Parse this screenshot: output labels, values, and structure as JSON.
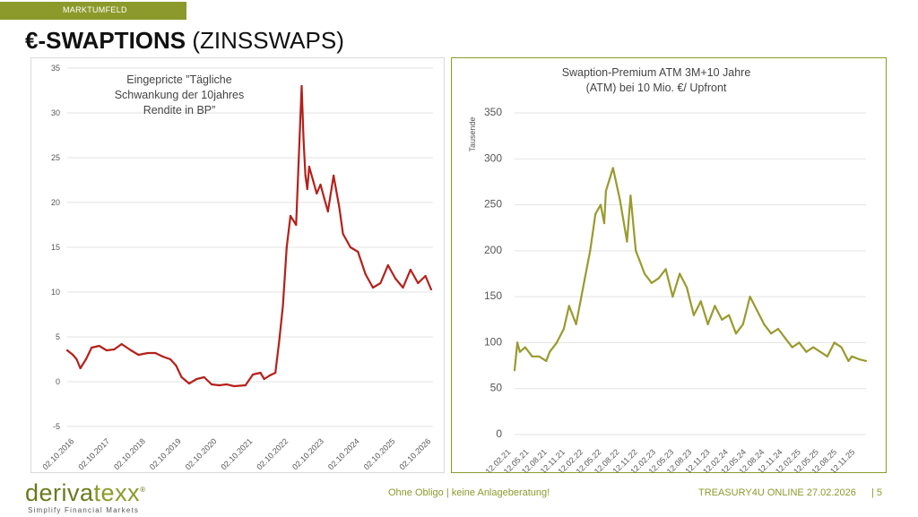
{
  "header": {
    "section_label": "MARKTUMFELD",
    "title_bold": "€-SWAPTIONS",
    "title_rest": "(ZINSSWAPS)"
  },
  "colors": {
    "accent": "#8c9a2b",
    "left_series": "#b5201a",
    "right_series": "#9a9a2f"
  },
  "chart_data": [
    {
      "type": "line",
      "title": "Eingepricte ”Tägliche Schwankung der 10jahres Rendite in BP”",
      "title_lines": [
        "Eingepricte ”Tägliche",
        "Schwankung der 10jahres",
        "Rendite in BP”"
      ],
      "xlabel": "",
      "ylabel": "",
      "ylim": [
        -5,
        35
      ],
      "yticks": [
        "35",
        "30",
        "25",
        "20",
        "15",
        "10",
        "5",
        "0",
        "-5"
      ],
      "xticks": [
        "02.10.2016",
        "02.10.2017",
        "02.10.2018",
        "02.10.2019",
        "02.10.2020",
        "02.10.2021",
        "02.10.2022",
        "02.10.2023",
        "02.10.2024",
        "02.10.2025",
        "02.10.2026"
      ],
      "x": [
        2016.75,
        2016.9,
        2017.0,
        2017.1,
        2017.25,
        2017.4,
        2017.6,
        2017.8,
        2018.0,
        2018.2,
        2018.45,
        2018.65,
        2018.9,
        2019.1,
        2019.3,
        2019.5,
        2019.65,
        2019.8,
        2020.0,
        2020.2,
        2020.4,
        2020.6,
        2020.8,
        2021.0,
        2021.2,
        2021.5,
        2021.7,
        2021.9,
        2022.0,
        2022.15,
        2022.3,
        2022.4,
        2022.5,
        2022.6,
        2022.7,
        2022.85,
        2023.0,
        2023.05,
        2023.1,
        2023.15,
        2023.2,
        2023.3,
        2023.4,
        2023.5,
        2023.6,
        2023.7,
        2023.85,
        2024.0,
        2024.1,
        2024.3,
        2024.5,
        2024.7,
        2024.9,
        2025.1,
        2025.3,
        2025.5,
        2025.7,
        2025.9,
        2026.1,
        2026.3,
        2026.45
      ],
      "values": [
        3.5,
        3.0,
        2.5,
        1.5,
        2.5,
        3.8,
        4.0,
        3.5,
        3.6,
        4.2,
        3.5,
        3.0,
        3.2,
        3.2,
        2.8,
        2.5,
        1.8,
        0.5,
        -0.2,
        0.3,
        0.5,
        -0.3,
        -0.4,
        -0.3,
        -0.5,
        -0.4,
        0.8,
        1.0,
        0.3,
        0.7,
        1.0,
        4.5,
        8.5,
        15.0,
        18.5,
        17.5,
        33.0,
        27.0,
        23.0,
        21.5,
        24.0,
        22.5,
        21.0,
        22.0,
        20.5,
        19.0,
        23.0,
        19.5,
        16.5,
        15.0,
        14.5,
        12.0,
        10.5,
        11.0,
        13.0,
        11.5,
        10.5,
        12.5,
        11.0,
        11.8,
        10.3
      ]
    },
    {
      "type": "line",
      "title": "Swaption-Premium ATM 3M+10 Jahre (ATM) bei 10 Mio. €/ Upfront",
      "title_lines": [
        "Swaption-Premium ATM 3M+10 Jahre",
        "(ATM) bei 10 Mio. €/ Upfront"
      ],
      "xlabel": "",
      "ylabel": "Tausende",
      "ylim": [
        0,
        350
      ],
      "yticks": [
        "350",
        "300",
        "250",
        "200",
        "150",
        "100",
        "50",
        "0"
      ],
      "xticks": [
        "12.02.21",
        "12.05.21",
        "12.08.21",
        "12.11.21",
        "12.02.22",
        "12.05.22",
        "12.08.22",
        "12.11.22",
        "12.02.23",
        "12.05.23",
        "12.08.23",
        "12.11.23",
        "12.02.24",
        "12.05.24",
        "12.08.24",
        "12.11.24",
        "12.02.25",
        "12.05.25",
        "12.08.25",
        "12.11.25"
      ],
      "x": [
        0.0,
        0.08,
        0.15,
        0.3,
        0.5,
        0.7,
        0.9,
        1.0,
        1.2,
        1.4,
        1.55,
        1.75,
        1.9,
        2.0,
        2.15,
        2.3,
        2.45,
        2.55,
        2.6,
        2.8,
        3.0,
        3.2,
        3.3,
        3.45,
        3.55,
        3.7,
        3.9,
        4.1,
        4.3,
        4.5,
        4.7,
        4.9,
        5.1,
        5.3,
        5.5,
        5.7,
        5.9,
        6.1,
        6.3,
        6.5,
        6.7,
        6.9,
        7.1,
        7.3,
        7.5,
        7.7,
        7.9,
        8.1,
        8.3,
        8.5,
        8.7,
        8.9,
        9.1,
        9.3,
        9.5,
        9.6,
        9.8,
        10.0
      ],
      "values": [
        70,
        100,
        90,
        95,
        85,
        85,
        80,
        90,
        100,
        115,
        140,
        120,
        150,
        170,
        200,
        240,
        250,
        230,
        265,
        290,
        255,
        210,
        260,
        200,
        190,
        175,
        165,
        170,
        180,
        150,
        175,
        160,
        130,
        145,
        120,
        140,
        125,
        130,
        110,
        120,
        150,
        135,
        120,
        110,
        115,
        105,
        95,
        100,
        90,
        95,
        90,
        85,
        100,
        95,
        80,
        85,
        82,
        80
      ]
    }
  ],
  "footer": {
    "logo_part1": "deriva",
    "logo_part2": "texx",
    "logo_trademark": "®",
    "logo_tagline": "Simplify Financial Markets",
    "center_text": "Ohne Obligo | keine Anlageberatung!",
    "event_text": "TREASURY4U ONLINE 27.02.2026",
    "page_number": "| 5"
  }
}
